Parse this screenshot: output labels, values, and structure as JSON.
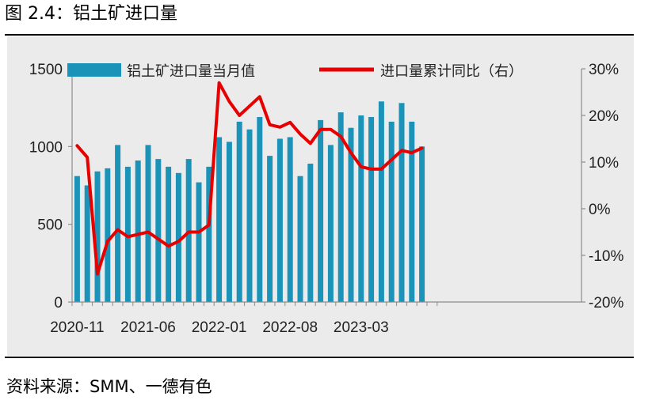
{
  "figure_title": "图 2.4：铝土矿进口量",
  "source_note": "资料来源：SMM、一德有色",
  "chart_data": {
    "type": "bar+line",
    "title": "铝土矿进口量",
    "categories": [
      "2020-11",
      "2020-12",
      "2021-01",
      "2021-02",
      "2021-03",
      "2021-04",
      "2021-05",
      "2021-06",
      "2021-07",
      "2021-08",
      "2021-09",
      "2021-10",
      "2021-11",
      "2021-12",
      "2022-01",
      "2022-02",
      "2022-03",
      "2022-04",
      "2022-05",
      "2022-06",
      "2022-07",
      "2022-08",
      "2022-09",
      "2022-10",
      "2022-11",
      "2022-12",
      "2023-01",
      "2023-02",
      "2023-03",
      "2023-04",
      "2023-05",
      "2023-06",
      "2023-07",
      "2023-08",
      "2023-09",
      "2023-10"
    ],
    "x_tick_labels": [
      "2020-11",
      "2021-06",
      "2022-01",
      "2022-08",
      "2023-03"
    ],
    "series": [
      {
        "name": "铝土矿进口量当月值",
        "type": "bar",
        "axis": "left",
        "color": "#1b93b8",
        "values": [
          810,
          750,
          840,
          860,
          1010,
          870,
          910,
          1010,
          920,
          870,
          830,
          920,
          770,
          870,
          1060,
          1030,
          1160,
          1110,
          1190,
          940,
          1050,
          1060,
          810,
          890,
          1170,
          1010,
          1220,
          1120,
          1200,
          1190,
          1290,
          1160,
          1280,
          1160,
          1000,
          null
        ]
      },
      {
        "name": "进口量累计同比（右）",
        "type": "line",
        "axis": "right",
        "color": "#e60000",
        "values": [
          13.5,
          11,
          -14,
          -7,
          -4.5,
          -6,
          -5.5,
          -5,
          -6.5,
          -8,
          -7,
          -5,
          -5,
          -3.5,
          27,
          23,
          20,
          22,
          24,
          18,
          17.5,
          18.5,
          16,
          14,
          17,
          17,
          15.5,
          12,
          9,
          8.5,
          8.5,
          10.5,
          12.5,
          12,
          13,
          null
        ]
      }
    ],
    "left_axis": {
      "min": 0,
      "max": 1500,
      "ticks": [
        0,
        500,
        1000,
        1500
      ]
    },
    "right_axis": {
      "min": -20,
      "max": 30,
      "ticks": [
        "-20%",
        "-10%",
        "0%",
        "10%",
        "20%",
        "30%"
      ]
    },
    "legend": [
      "铝土矿进口量当月值",
      "进口量累计同比（右）"
    ],
    "legend_position": "top"
  }
}
